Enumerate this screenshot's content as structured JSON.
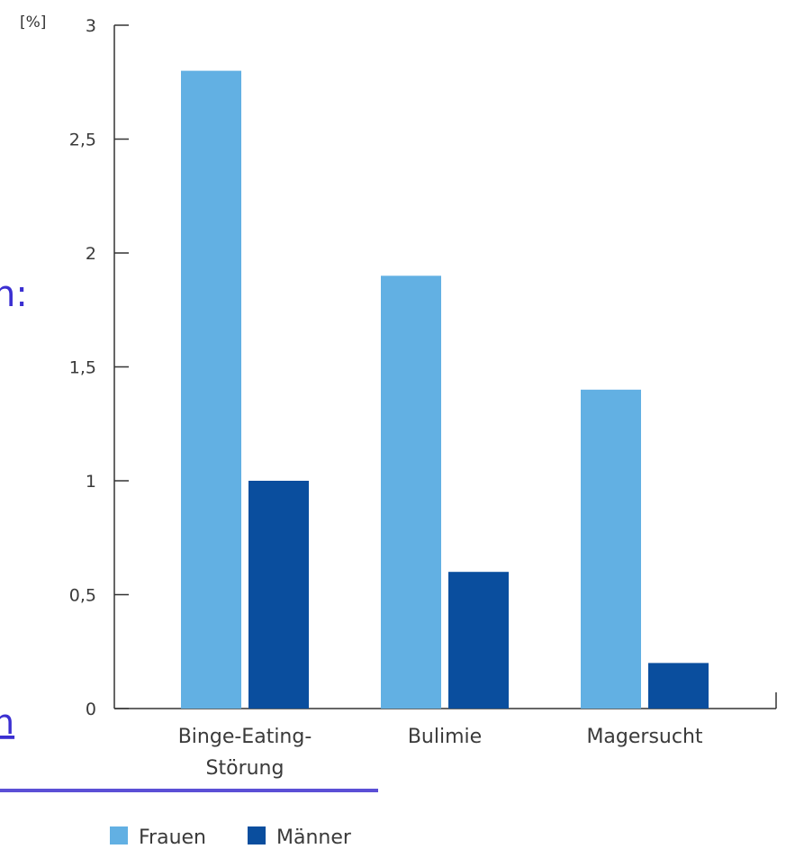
{
  "fragments": {
    "colon_text": "n:",
    "link_text": "n"
  },
  "colors": {
    "frauen": "#62b0e3",
    "maenner": "#0a4e9e",
    "axis": "#333333",
    "fragment": "#3b2fd1"
  },
  "chart_data": {
    "type": "bar",
    "title": "",
    "ylabel": "[%]",
    "xlabel": "",
    "ylim": [
      0,
      3
    ],
    "yticks": [
      {
        "value": 0,
        "label": "0"
      },
      {
        "value": 0.5,
        "label": "0,5"
      },
      {
        "value": 1,
        "label": "1"
      },
      {
        "value": 1.5,
        "label": "1,5"
      },
      {
        "value": 2,
        "label": "2"
      },
      {
        "value": 2.5,
        "label": "2,5"
      },
      {
        "value": 3,
        "label": "3"
      }
    ],
    "categories": [
      [
        "Binge-Eating-",
        "Störung"
      ],
      [
        "Bulimie"
      ],
      [
        "Magersucht"
      ]
    ],
    "series": [
      {
        "name": "Frauen",
        "color": "#62b0e3",
        "values": [
          2.8,
          1.9,
          1.4
        ]
      },
      {
        "name": "Männer",
        "color": "#0a4e9e",
        "values": [
          1.0,
          0.6,
          0.2
        ]
      }
    ],
    "legend_position": "bottom-left"
  }
}
